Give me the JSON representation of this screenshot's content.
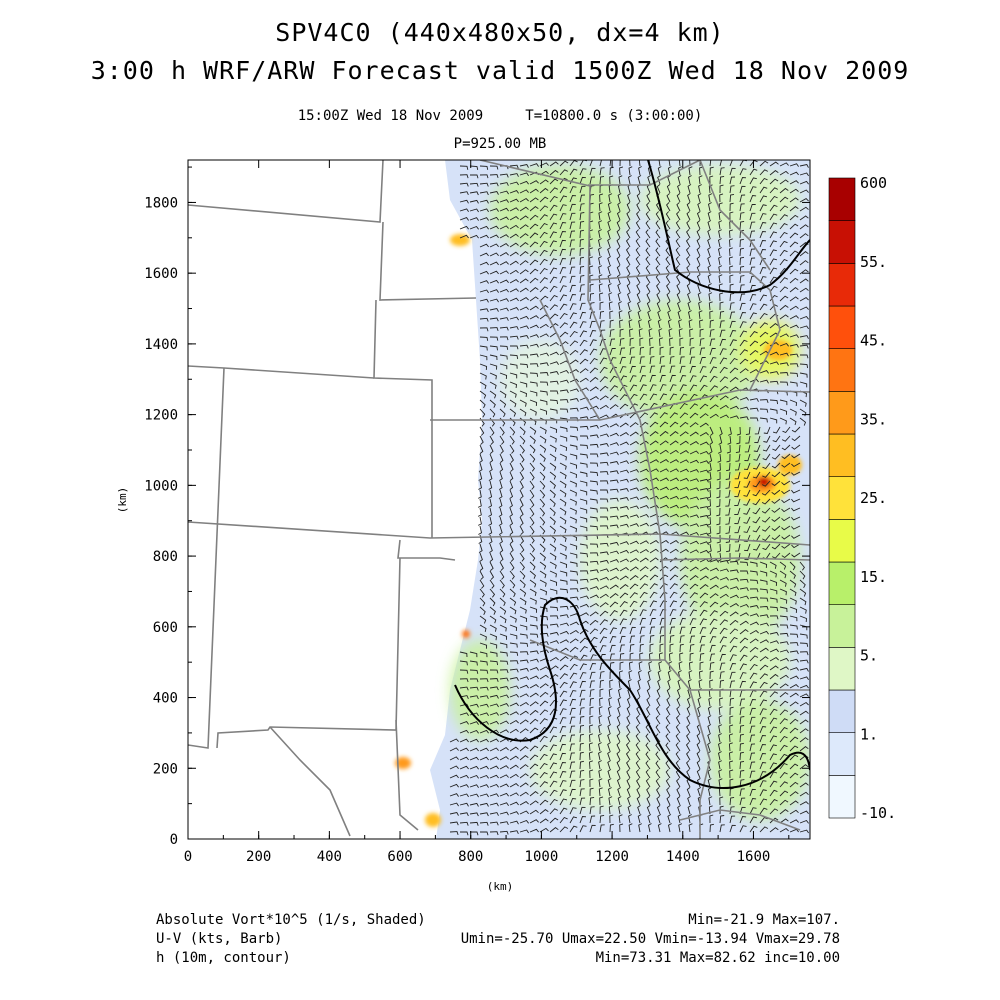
{
  "header": {
    "title_line1": "SPV4C0 (440x480x50, dx=4 km)",
    "title_line2": "3:00 h WRF/ARW Forecast valid 1500Z Wed 18 Nov 2009",
    "valid_time": "15:00Z Wed 18 Nov 2009",
    "elapsed": "T=10800.0 s (3:00:00)",
    "level": "P=925.00 MB"
  },
  "axes": {
    "x_label": "(km)",
    "y_label": "(km)",
    "x_ticks": [
      "0",
      "200",
      "400",
      "600",
      "800",
      "1000",
      "1200",
      "1400",
      "1600"
    ],
    "y_ticks": [
      "0",
      "200",
      "400",
      "600",
      "800",
      "1000",
      "1200",
      "1400",
      "1600",
      "1800"
    ],
    "x_range": [
      0,
      1760
    ],
    "y_range": [
      0,
      1920
    ]
  },
  "colorbar": {
    "labels": [
      "600",
      "55.",
      "45.",
      "35.",
      "25.",
      "15.",
      "5.",
      "1.",
      "-10."
    ],
    "colors": [
      "#f0f8ff",
      "#dde9fb",
      "#cfdcf6",
      "#dff7c6",
      "#c8f29a",
      "#b8f06a",
      "#e8fb48",
      "#ffe23a",
      "#ffbe22",
      "#ff9a1a",
      "#ff7412",
      "#ff500c",
      "#e82a08",
      "#c81004",
      "#a80000"
    ]
  },
  "footer": {
    "field1_name": "Absolute Vort*10^5 (1/s, Shaded)",
    "field1_stats": "Min=-21.9 Max=107.",
    "field2_name": "U-V (kts, Barb)",
    "field2_stats": "Umin=-25.70 Umax=22.50 Vmin=-13.94 Vmax=29.78",
    "field3_name": "h (10m, contour)",
    "field3_stats": "Min=73.31 Max=82.62 inc=10.00"
  },
  "map": {
    "data_boundary": "west edge of model data",
    "palette": {
      "boundary_line": "#808080",
      "contour_line": "#000000",
      "barb_color": "#222222"
    }
  }
}
